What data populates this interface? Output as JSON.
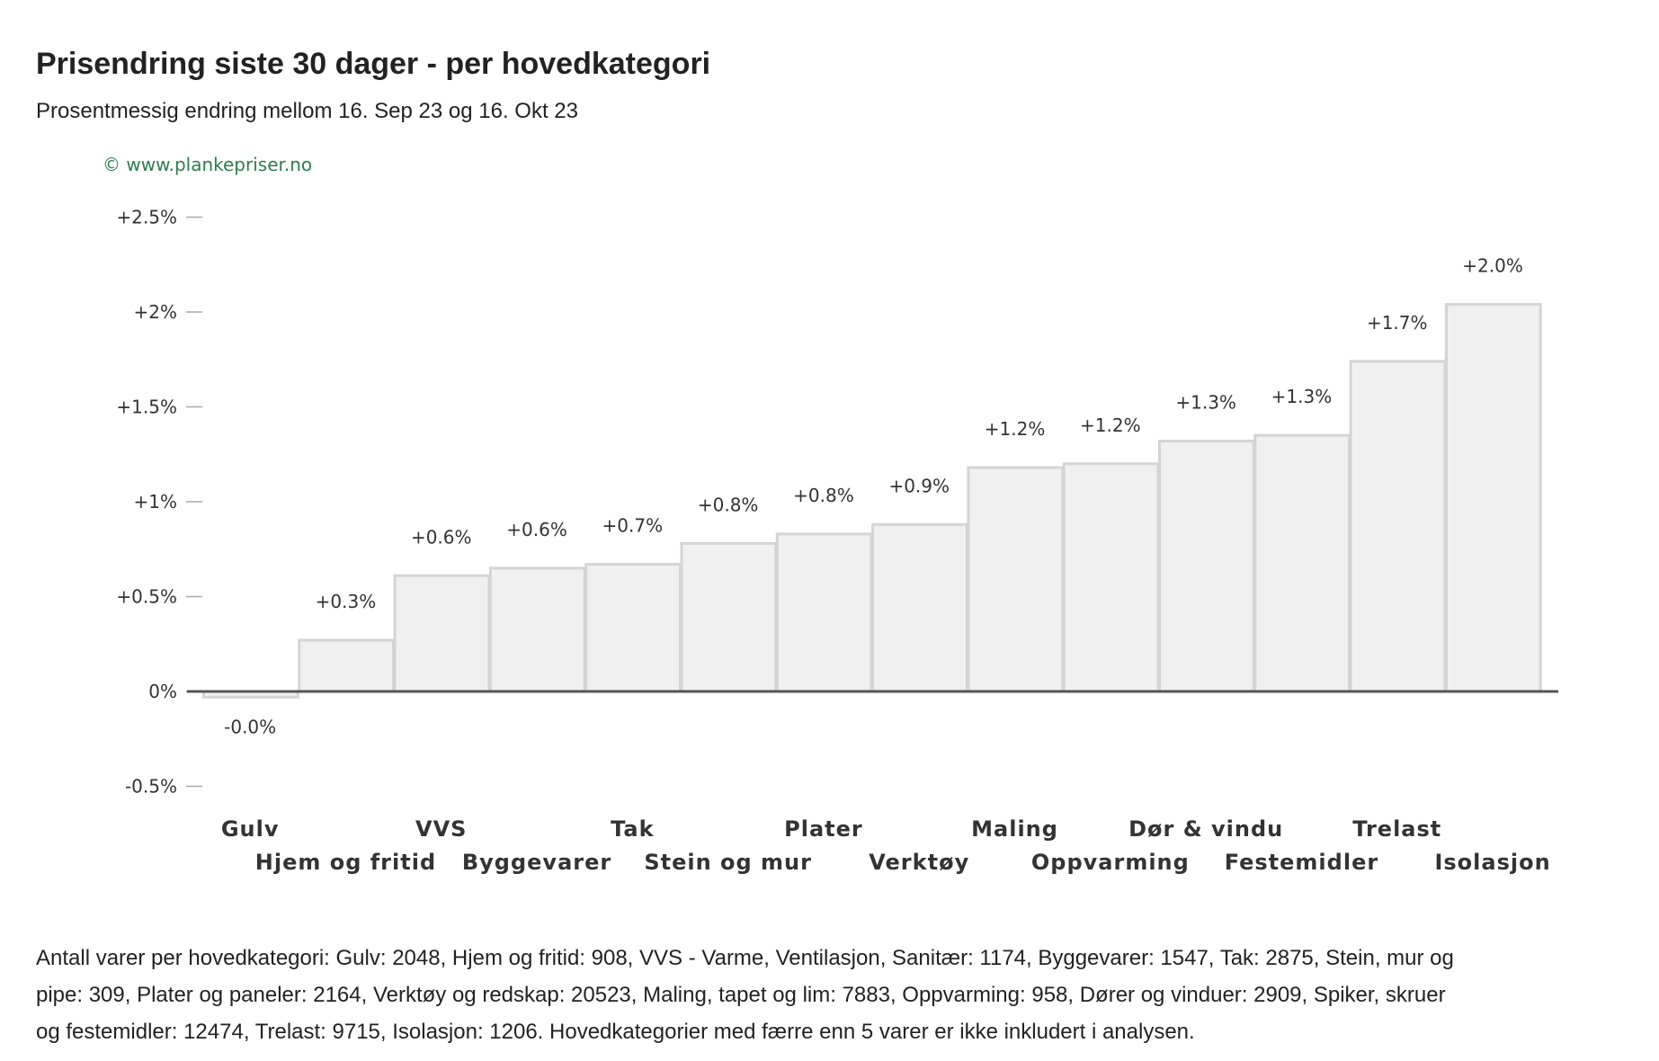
{
  "title": "Prisendring siste 30 dager - per hovedkategori",
  "subtitle": "Prosentmessig endring mellom 16. Sep 23 og 16. Okt 23",
  "footnote": "Antall varer per hovedkategori: Gulv: 2048, Hjem og fritid: 908, VVS - Varme, Ventilasjon, Sanitær: 1174, Byggevarer: 1547, Tak: 2875, Stein, mur og pipe: 309, Plater og paneler: 2164, Verktøy og redskap: 20523, Maling, tapet og lim: 7883, Oppvarming: 958, Dører og vinduer: 2909, Spiker, skruer og festemidler: 12474, Trelast: 9715, Isolasjon: 1206. Hovedkategorier med færre enn 5 varer er ikke inkludert i analysen.",
  "colors": {
    "bar_fill": "#f0f0f0",
    "bar_stroke": "#d4d4d4",
    "axis": "#555555",
    "credit": "#2e7d4f",
    "text": "#333333"
  },
  "chart_data": {
    "type": "bar",
    "credit": "© www.plankepriser.no",
    "categories": [
      "Gulv",
      "Hjem og fritid",
      "VVS",
      "Byggevarer",
      "Tak",
      "Stein og mur",
      "Plater",
      "Verktøy",
      "Maling",
      "Oppvarming",
      "Dør & vindu",
      "Festemidler",
      "Trelast",
      "Isolasjon"
    ],
    "values": [
      -0.03,
      0.27,
      0.61,
      0.65,
      0.67,
      0.78,
      0.83,
      0.88,
      1.18,
      1.2,
      1.32,
      1.35,
      1.74,
      2.04
    ],
    "data_labels": [
      "-0.0%",
      "+0.3%",
      "+0.6%",
      "+0.6%",
      "+0.7%",
      "+0.8%",
      "+0.8%",
      "+0.9%",
      "+1.2%",
      "+1.2%",
      "+1.3%",
      "+1.3%",
      "+1.7%",
      "+2.0%"
    ],
    "y_ticks": [
      -0.5,
      0,
      0.5,
      1,
      1.5,
      2,
      2.5
    ],
    "y_tick_labels": [
      "-0.5%",
      "0%",
      "+0.5%",
      "+1%",
      "+1.5%",
      "+2%",
      "+2.5%"
    ],
    "ylim": [
      -0.5,
      2.5
    ],
    "grid": false,
    "legend": "none"
  }
}
